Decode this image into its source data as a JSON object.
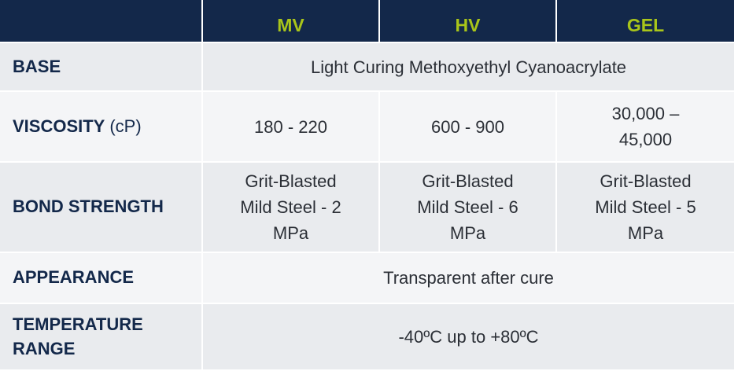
{
  "table": {
    "header": [
      "MV",
      "HV",
      "GEL"
    ],
    "rows": [
      {
        "label": "BASE",
        "values": [
          "Light Curing Methoxyethyl Cyanoacrylate"
        ]
      },
      {
        "label": "VISCOSITY",
        "unit": "(cP)",
        "values": [
          "180 - 220",
          "600 - 900",
          "30,000 – 45,000"
        ]
      },
      {
        "label": "BOND STRENGTH",
        "values": [
          "Grit-Blasted Mild Steel - 2 MPa",
          "Grit-Blasted Mild Steel - 6 MPa",
          "Grit-Blasted Mild Steel - 5 MPa"
        ]
      },
      {
        "label": "APPEARANCE",
        "values": [
          "Transparent after cure"
        ]
      },
      {
        "label": "TEMPERATURE RANGE",
        "values": [
          "-40ºC up to +80ºC"
        ]
      }
    ]
  }
}
